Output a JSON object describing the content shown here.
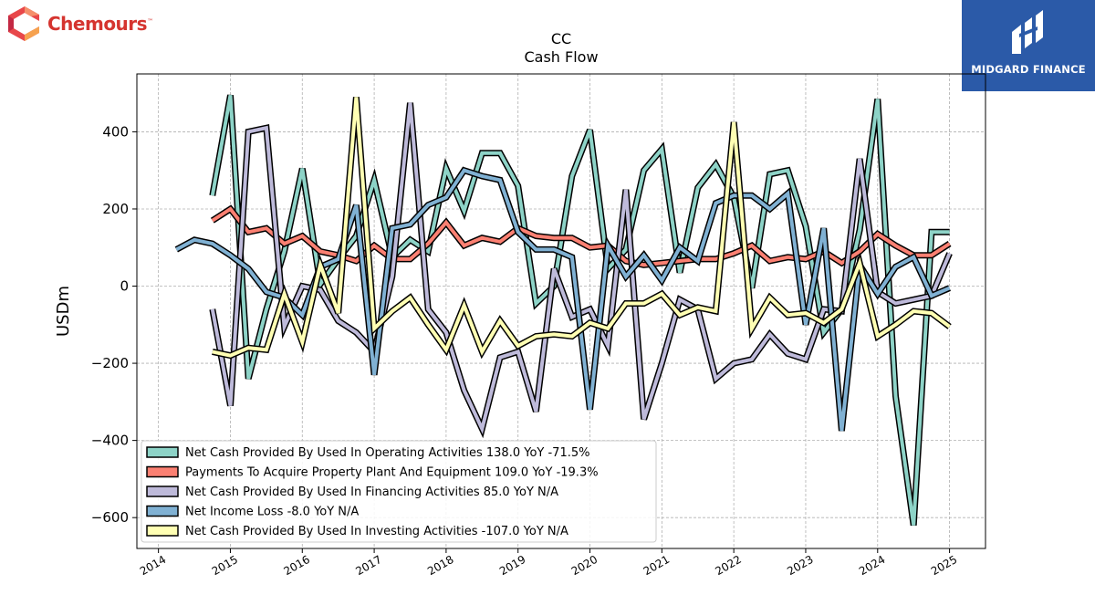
{
  "brand_left": {
    "name": "Chemours",
    "tm": "™"
  },
  "brand_right": {
    "name": "MIDGARD FINANCE"
  },
  "chart_data": {
    "type": "line",
    "title": "CC",
    "subtitle": "Cash Flow",
    "ylabel": "USDm",
    "xlabel": "",
    "xlim": [
      2013.7,
      2025.5
    ],
    "ylim": [
      -680,
      550
    ],
    "grid": true,
    "legend_position": "lower-left",
    "x_ticks": [
      "2014",
      "2015",
      "2016",
      "2017",
      "2018",
      "2019",
      "2020",
      "2021",
      "2022",
      "2023",
      "2024",
      "2025"
    ],
    "y_ticks": [
      400,
      200,
      0,
      -200,
      -400,
      -600
    ],
    "y_tick_labels": [
      "400",
      "200",
      "0",
      "−200",
      "−400",
      "−600"
    ],
    "series": [
      {
        "name": "Net Cash Provided By Used In Operating Activities",
        "legend": "Net Cash Provided By Used In Operating Activities  138.0 YoY -71.5%",
        "color": "#8dd3c7",
        "points": [
          [
            2014.75,
            235
          ],
          [
            2015.0,
            495
          ],
          [
            2015.25,
            -240
          ],
          [
            2015.5,
            -60
          ],
          [
            2015.75,
            90
          ],
          [
            2016.0,
            305
          ],
          [
            2016.25,
            5
          ],
          [
            2016.5,
            70
          ],
          [
            2016.75,
            130
          ],
          [
            2017.0,
            275
          ],
          [
            2017.25,
            75
          ],
          [
            2017.5,
            120
          ],
          [
            2017.75,
            90
          ],
          [
            2018.0,
            305
          ],
          [
            2018.25,
            195
          ],
          [
            2018.5,
            345
          ],
          [
            2018.75,
            345
          ],
          [
            2019.0,
            260
          ],
          [
            2019.25,
            -45
          ],
          [
            2019.5,
            0
          ],
          [
            2019.75,
            285
          ],
          [
            2020.0,
            405
          ],
          [
            2020.25,
            45
          ],
          [
            2020.5,
            95
          ],
          [
            2020.75,
            300
          ],
          [
            2021.0,
            355
          ],
          [
            2021.25,
            35
          ],
          [
            2021.5,
            255
          ],
          [
            2021.75,
            315
          ],
          [
            2022.0,
            230
          ],
          [
            2022.25,
            -5
          ],
          [
            2022.5,
            290
          ],
          [
            2022.75,
            300
          ],
          [
            2023.0,
            155
          ],
          [
            2023.25,
            -120
          ],
          [
            2023.5,
            -60
          ],
          [
            2023.75,
            145
          ],
          [
            2024.0,
            485
          ],
          [
            2024.25,
            -285
          ],
          [
            2024.5,
            -620
          ],
          [
            2024.75,
            140
          ],
          [
            2025.0,
            140
          ]
        ]
      },
      {
        "name": "Payments To Acquire Property Plant And Equipment",
        "legend": "Payments To Acquire Property Plant And Equipment  109.0 YoY -19.3%",
        "color": "#fb8072",
        "points": [
          [
            2014.75,
            170
          ],
          [
            2015.0,
            200
          ],
          [
            2015.25,
            140
          ],
          [
            2015.5,
            150
          ],
          [
            2015.75,
            110
          ],
          [
            2016.0,
            130
          ],
          [
            2016.25,
            90
          ],
          [
            2016.5,
            80
          ],
          [
            2016.75,
            65
          ],
          [
            2017.0,
            105
          ],
          [
            2017.25,
            70
          ],
          [
            2017.5,
            70
          ],
          [
            2017.75,
            110
          ],
          [
            2018.0,
            165
          ],
          [
            2018.25,
            105
          ],
          [
            2018.5,
            125
          ],
          [
            2018.75,
            115
          ],
          [
            2019.0,
            150
          ],
          [
            2019.25,
            130
          ],
          [
            2019.5,
            125
          ],
          [
            2019.75,
            125
          ],
          [
            2020.0,
            100
          ],
          [
            2020.25,
            105
          ],
          [
            2020.5,
            65
          ],
          [
            2020.75,
            55
          ],
          [
            2021.0,
            60
          ],
          [
            2021.25,
            65
          ],
          [
            2021.5,
            70
          ],
          [
            2021.75,
            70
          ],
          [
            2022.0,
            85
          ],
          [
            2022.25,
            105
          ],
          [
            2022.5,
            65
          ],
          [
            2022.75,
            75
          ],
          [
            2023.0,
            70
          ],
          [
            2023.25,
            90
          ],
          [
            2023.5,
            60
          ],
          [
            2023.75,
            90
          ],
          [
            2024.0,
            135
          ],
          [
            2024.25,
            105
          ],
          [
            2024.5,
            80
          ],
          [
            2024.75,
            80
          ],
          [
            2025.0,
            110
          ]
        ]
      },
      {
        "name": "Net Cash Provided By Used In Financing Activities",
        "legend": "Net Cash Provided By Used In Financing Activities  85.0 YoY N/A",
        "color": "#bebada",
        "points": [
          [
            2014.75,
            -60
          ],
          [
            2015.0,
            -310
          ],
          [
            2015.25,
            400
          ],
          [
            2015.5,
            410
          ],
          [
            2015.75,
            -105
          ],
          [
            2016.0,
            0
          ],
          [
            2016.25,
            -10
          ],
          [
            2016.5,
            -90
          ],
          [
            2016.75,
            -120
          ],
          [
            2017.0,
            -170
          ],
          [
            2017.25,
            25
          ],
          [
            2017.5,
            475
          ],
          [
            2017.75,
            -60
          ],
          [
            2018.0,
            -120
          ],
          [
            2018.25,
            -270
          ],
          [
            2018.5,
            -370
          ],
          [
            2018.75,
            -185
          ],
          [
            2019.0,
            -170
          ],
          [
            2019.25,
            -325
          ],
          [
            2019.5,
            45
          ],
          [
            2019.75,
            -80
          ],
          [
            2020.0,
            -60
          ],
          [
            2020.25,
            -155
          ],
          [
            2020.5,
            250
          ],
          [
            2020.75,
            -345
          ],
          [
            2021.0,
            -200
          ],
          [
            2021.25,
            -35
          ],
          [
            2021.5,
            -60
          ],
          [
            2021.75,
            -240
          ],
          [
            2022.0,
            -200
          ],
          [
            2022.25,
            -190
          ],
          [
            2022.5,
            -125
          ],
          [
            2022.75,
            -175
          ],
          [
            2023.0,
            -190
          ],
          [
            2023.25,
            -60
          ],
          [
            2023.5,
            -65
          ],
          [
            2023.75,
            330
          ],
          [
            2024.0,
            -15
          ],
          [
            2024.25,
            -45
          ],
          [
            2024.5,
            -35
          ],
          [
            2024.75,
            -25
          ],
          [
            2025.0,
            85
          ]
        ]
      },
      {
        "name": "Net Income Loss",
        "legend": "Net Income Loss  -8.0 YoY N/A",
        "color": "#80b1d3",
        "points": [
          [
            2014.25,
            95
          ],
          [
            2014.5,
            120
          ],
          [
            2014.75,
            110
          ],
          [
            2015.0,
            80
          ],
          [
            2015.25,
            45
          ],
          [
            2015.5,
            -15
          ],
          [
            2015.75,
            -30
          ],
          [
            2016.0,
            -75
          ],
          [
            2016.25,
            50
          ],
          [
            2016.5,
            70
          ],
          [
            2016.75,
            210
          ],
          [
            2017.0,
            -230
          ],
          [
            2017.25,
            150
          ],
          [
            2017.5,
            160
          ],
          [
            2017.75,
            210
          ],
          [
            2018.0,
            230
          ],
          [
            2018.25,
            300
          ],
          [
            2018.5,
            285
          ],
          [
            2018.75,
            275
          ],
          [
            2019.0,
            140
          ],
          [
            2019.25,
            95
          ],
          [
            2019.5,
            95
          ],
          [
            2019.75,
            75
          ],
          [
            2020.0,
            -320
          ],
          [
            2020.25,
            105
          ],
          [
            2020.5,
            25
          ],
          [
            2020.75,
            80
          ],
          [
            2021.0,
            15
          ],
          [
            2021.25,
            100
          ],
          [
            2021.5,
            65
          ],
          [
            2021.75,
            215
          ],
          [
            2022.0,
            235
          ],
          [
            2022.25,
            235
          ],
          [
            2022.5,
            200
          ],
          [
            2022.75,
            240
          ],
          [
            2023.0,
            -100
          ],
          [
            2023.25,
            150
          ],
          [
            2023.5,
            -375
          ],
          [
            2023.75,
            55
          ],
          [
            2024.0,
            -20
          ],
          [
            2024.25,
            50
          ],
          [
            2024.5,
            75
          ],
          [
            2024.75,
            -25
          ],
          [
            2025.0,
            -5
          ]
        ]
      },
      {
        "name": "Net Cash Provided By Used In Investing Activities",
        "legend": "Net Cash Provided By Used In Investing Activities  -107.0 YoY N/A",
        "color": "#ffffb3",
        "points": [
          [
            2014.75,
            -170
          ],
          [
            2015.0,
            -180
          ],
          [
            2015.25,
            -160
          ],
          [
            2015.5,
            -165
          ],
          [
            2015.75,
            -20
          ],
          [
            2016.0,
            -145
          ],
          [
            2016.25,
            55
          ],
          [
            2016.5,
            -70
          ],
          [
            2016.75,
            490
          ],
          [
            2017.0,
            -110
          ],
          [
            2017.25,
            -65
          ],
          [
            2017.5,
            -30
          ],
          [
            2017.75,
            -100
          ],
          [
            2018.0,
            -165
          ],
          [
            2018.25,
            -50
          ],
          [
            2018.5,
            -170
          ],
          [
            2018.75,
            -90
          ],
          [
            2019.0,
            -155
          ],
          [
            2019.25,
            -130
          ],
          [
            2019.5,
            -125
          ],
          [
            2019.75,
            -130
          ],
          [
            2020.0,
            -95
          ],
          [
            2020.25,
            -110
          ],
          [
            2020.5,
            -45
          ],
          [
            2020.75,
            -45
          ],
          [
            2021.0,
            -20
          ],
          [
            2021.25,
            -75
          ],
          [
            2021.5,
            -55
          ],
          [
            2021.75,
            -65
          ],
          [
            2022.0,
            425
          ],
          [
            2022.25,
            -110
          ],
          [
            2022.5,
            -30
          ],
          [
            2022.75,
            -75
          ],
          [
            2023.0,
            -70
          ],
          [
            2023.25,
            -95
          ],
          [
            2023.5,
            -60
          ],
          [
            2023.75,
            60
          ],
          [
            2024.0,
            -130
          ],
          [
            2024.25,
            -100
          ],
          [
            2024.5,
            -65
          ],
          [
            2024.75,
            -70
          ],
          [
            2025.0,
            -105
          ]
        ]
      }
    ]
  }
}
